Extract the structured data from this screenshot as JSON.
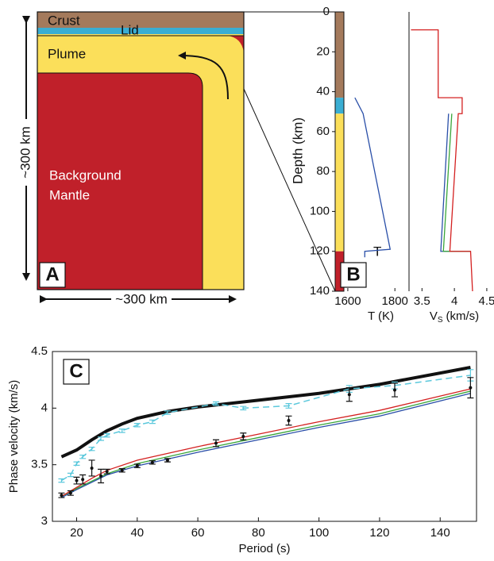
{
  "panel_a": {
    "label": "A",
    "crust": "Crust",
    "lid": "Lid",
    "plume": "Plume",
    "background_mantle": [
      "Background",
      "Mantle"
    ],
    "height": "~300 km",
    "width": "~300 km"
  },
  "chart_data": [
    {
      "type": "column",
      "label": "B",
      "ylabel": "Depth (km)",
      "ylim": [
        0,
        140
      ],
      "y_reversed": true,
      "yticks": [
        0,
        20,
        40,
        60,
        80,
        100,
        120,
        140
      ],
      "layers": [
        {
          "top": 0,
          "bottom": 43,
          "color": "#a47a5c"
        },
        {
          "top": 43,
          "bottom": 51,
          "color": "#3aaed3"
        },
        {
          "top": 51,
          "bottom": 120,
          "color": "#fbdf5a"
        },
        {
          "top": 120,
          "bottom": 140,
          "color": "#c0202a"
        }
      ]
    },
    {
      "type": "profile",
      "xlabel": "T (K)",
      "annotation": "T",
      "xlim": [
        1580,
        1860
      ],
      "xticks": [
        1600,
        1800
      ],
      "ylim": [
        0,
        140
      ],
      "y_reversed": true,
      "series": [
        {
          "color": "#2a4fa8",
          "values": [
            1630,
            1665,
            1780,
            1672,
            1672
          ],
          "depth": [
            43,
            51,
            119,
            120,
            123
          ]
        }
      ]
    },
    {
      "type": "profile",
      "xlabel": [
        "V",
        "S",
        "(km/s)"
      ],
      "xlim": [
        3.3,
        4.55
      ],
      "xticks": [
        3.5,
        4,
        4.5
      ],
      "ylim": [
        0,
        140
      ],
      "y_reversed": true,
      "series": [
        {
          "color": "#2a4fa8",
          "values": [
            3.91,
            3.79,
            4.25
          ],
          "depth": [
            51,
            120,
            120
          ]
        },
        {
          "color": "#3aa63a",
          "values": [
            3.96,
            3.83,
            4.25
          ],
          "depth": [
            51,
            120,
            120
          ]
        },
        {
          "color": "#d42020",
          "values": [
            3.33,
            3.75,
            3.75,
            4.12,
            4.12,
            4.06,
            3.93,
            4.25,
            4.28
          ],
          "depth": [
            9,
            9,
            43,
            43,
            51,
            51,
            120,
            120,
            140
          ]
        }
      ]
    },
    {
      "type": "line",
      "label": "C",
      "xlabel": "Period (s)",
      "ylabel": "Phase velocity (km/s)",
      "xlim": [
        12,
        152
      ],
      "xticks": [
        20,
        40,
        60,
        80,
        100,
        120,
        140
      ],
      "ylim": [
        3,
        4.5
      ],
      "yticks": [
        3,
        3.5,
        4,
        4.5
      ],
      "series": [
        {
          "color": "#111111",
          "width": 4,
          "x": [
            15,
            20,
            25,
            30,
            35,
            40,
            50,
            60,
            80,
            100,
            120,
            150
          ],
          "values": [
            3.57,
            3.63,
            3.72,
            3.8,
            3.86,
            3.91,
            3.97,
            4.01,
            4.07,
            4.13,
            4.21,
            4.36
          ]
        },
        {
          "color": "#2a4fa8",
          "width": 1.3,
          "x": [
            15,
            20,
            30,
            40,
            60,
            80,
            100,
            120,
            150
          ],
          "values": [
            3.21,
            3.28,
            3.41,
            3.49,
            3.61,
            3.72,
            3.83,
            3.93,
            4.13
          ]
        },
        {
          "color": "#3aa63a",
          "width": 1.3,
          "x": [
            15,
            20,
            30,
            40,
            60,
            80,
            100,
            120,
            150
          ],
          "values": [
            3.22,
            3.29,
            3.42,
            3.51,
            3.63,
            3.74,
            3.85,
            3.95,
            4.15
          ]
        },
        {
          "color": "#d42020",
          "width": 1.3,
          "x": [
            15,
            20,
            25,
            30,
            40,
            60,
            80,
            100,
            120,
            150
          ],
          "values": [
            3.22,
            3.3,
            3.38,
            3.45,
            3.54,
            3.66,
            3.77,
            3.88,
            3.98,
            4.17
          ]
        },
        {
          "color": "#5bc8dc",
          "width": 1.5,
          "dash": true,
          "x": [
            15,
            18,
            20,
            22,
            25,
            28,
            30,
            35,
            40,
            45,
            50,
            66,
            75,
            90,
            110,
            125,
            150
          ],
          "values": [
            3.36,
            3.41,
            3.51,
            3.57,
            3.64,
            3.73,
            3.76,
            3.8,
            3.85,
            3.88,
            3.96,
            4.04,
            4.0,
            4.02,
            4.17,
            4.2,
            4.29
          ],
          "errors": [
            0.015,
            0.015,
            0.015,
            0.015,
            0.015,
            0.015,
            0.015,
            0.015,
            0.015,
            0.015,
            0.015,
            0.015,
            0.015,
            0.02,
            0.03,
            0.03,
            0.05
          ]
        },
        {
          "color": "#111111",
          "markers": true,
          "x": [
            15,
            18,
            20,
            22,
            25,
            28,
            30,
            35,
            40,
            45,
            50,
            66,
            75,
            90,
            110,
            125,
            150
          ],
          "values": [
            3.23,
            3.25,
            3.36,
            3.37,
            3.47,
            3.4,
            3.44,
            3.45,
            3.49,
            3.52,
            3.54,
            3.69,
            3.75,
            3.89,
            4.12,
            4.16,
            4.18
          ],
          "errors": [
            0.02,
            0.02,
            0.03,
            0.04,
            0.07,
            0.06,
            0.02,
            0.015,
            0.015,
            0.015,
            0.015,
            0.03,
            0.03,
            0.04,
            0.06,
            0.06,
            0.09
          ]
        }
      ]
    }
  ]
}
